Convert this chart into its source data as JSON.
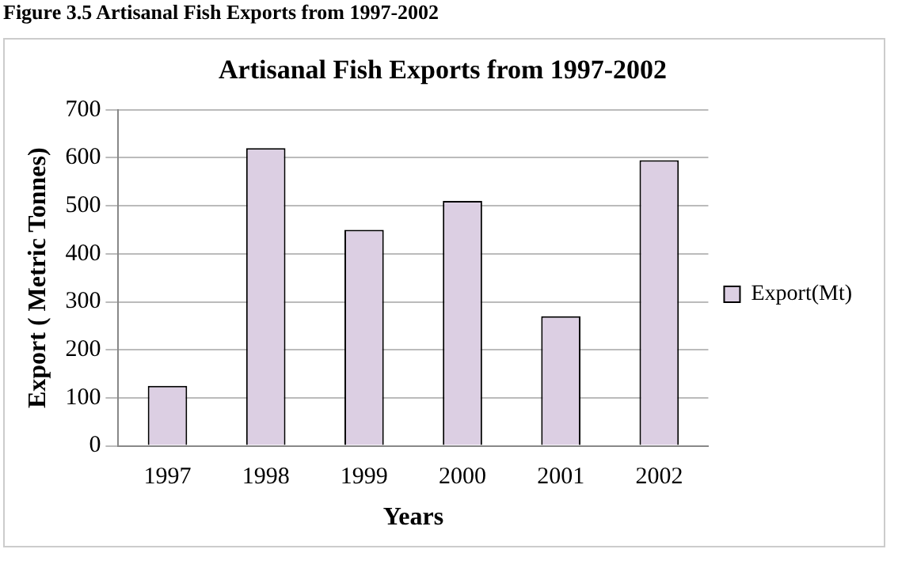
{
  "chart_data": {
    "type": "bar",
    "title": "Artisanal Fish Exports from 1997-2002",
    "annotations": [
      "Figure 3.5 Artisanal Fish Exports from 1997-2002"
    ],
    "xlabel": "Years",
    "ylabel": "Export ( Metric Tonnes)",
    "categories": [
      "1997",
      "1998",
      "1999",
      "2000",
      "2001",
      "2002"
    ],
    "series": [
      {
        "name": "Export(Mt)",
        "color": "#dccfe3",
        "values": [
          125,
          620,
          450,
          510,
          270,
          595
        ]
      }
    ],
    "ylim": [
      0,
      700
    ],
    "yticks": [
      0,
      100,
      200,
      300,
      400,
      500,
      600,
      700
    ],
    "grid": "y",
    "legend": "right"
  }
}
